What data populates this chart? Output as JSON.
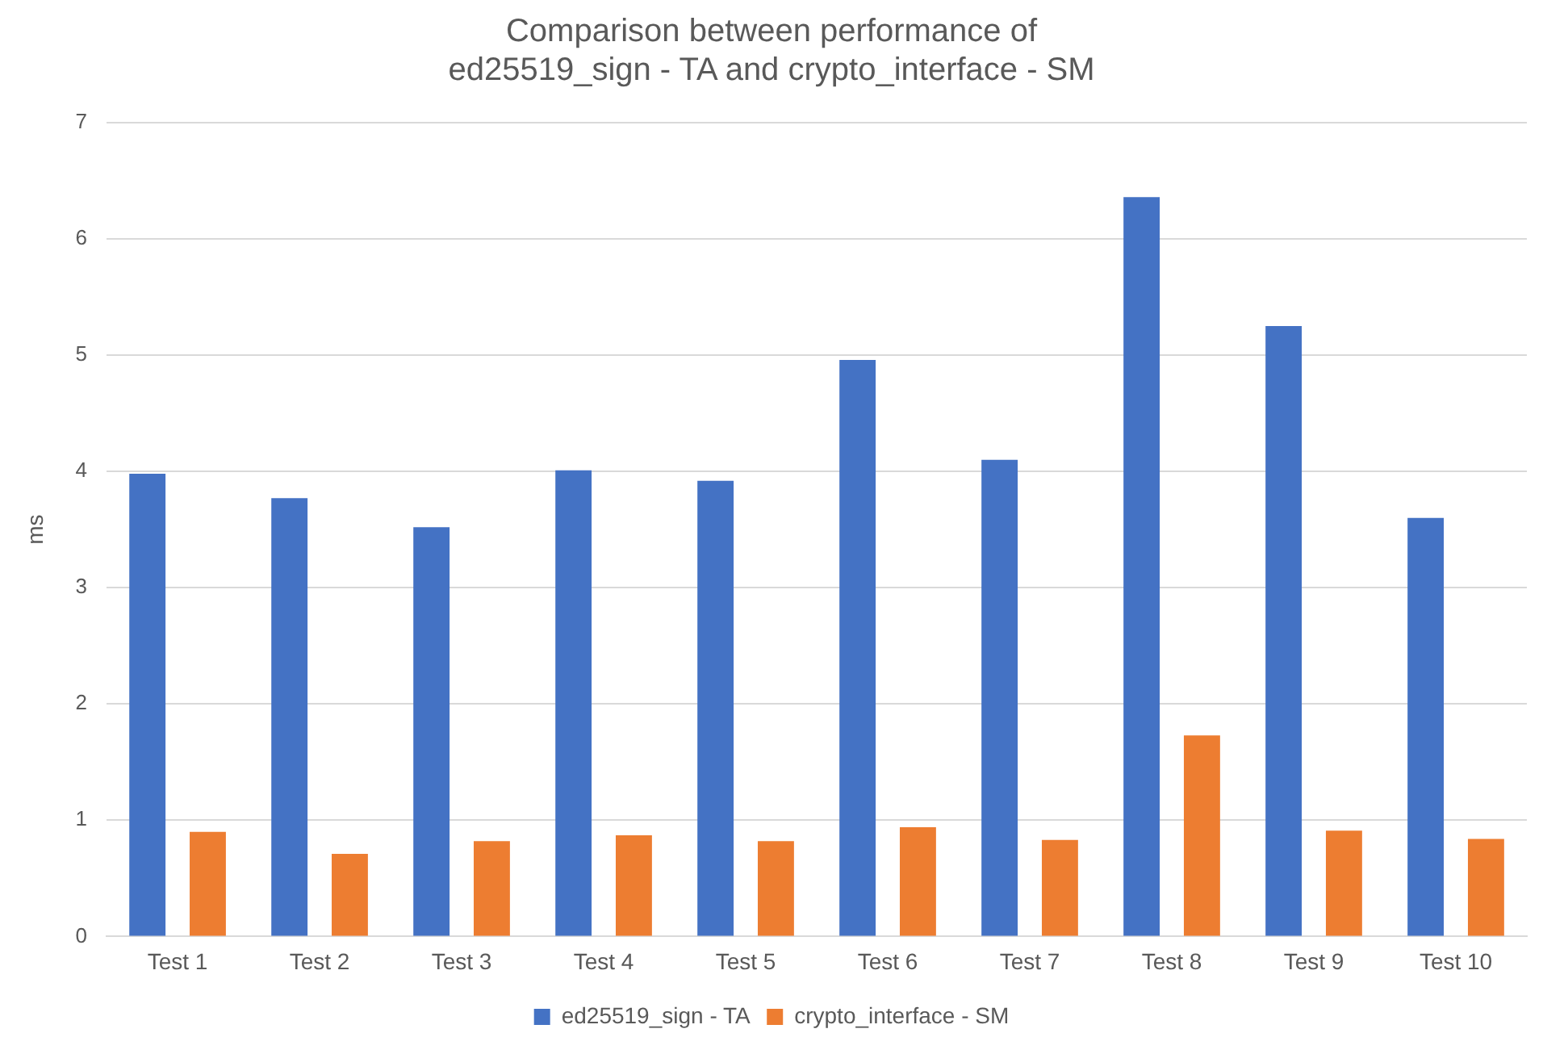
{
  "chart_data": {
    "type": "bar",
    "title": "Comparison between performance of\ned25519_sign - TA and crypto_interface - SM",
    "ylabel": "ms",
    "categories": [
      "Test 1",
      "Test 2",
      "Test 3",
      "Test 4",
      "Test 5",
      "Test 6",
      "Test 7",
      "Test 8",
      "Test 9",
      "Test 10"
    ],
    "series": [
      {
        "name": "ed25519_sign - TA",
        "color": "#4472c4",
        "values": [
          3.98,
          3.77,
          3.52,
          4.01,
          3.92,
          4.96,
          4.1,
          6.36,
          5.25,
          3.6
        ]
      },
      {
        "name": "crypto_interface - SM",
        "color": "#ed7d31",
        "values": [
          0.9,
          0.71,
          0.82,
          0.87,
          0.82,
          0.94,
          0.83,
          1.73,
          0.91,
          0.84
        ]
      }
    ],
    "ylim": [
      0,
      7
    ],
    "yticks": [
      0,
      1,
      2,
      3,
      4,
      5,
      6,
      7
    ],
    "grid": "y",
    "legend": "bottom"
  }
}
